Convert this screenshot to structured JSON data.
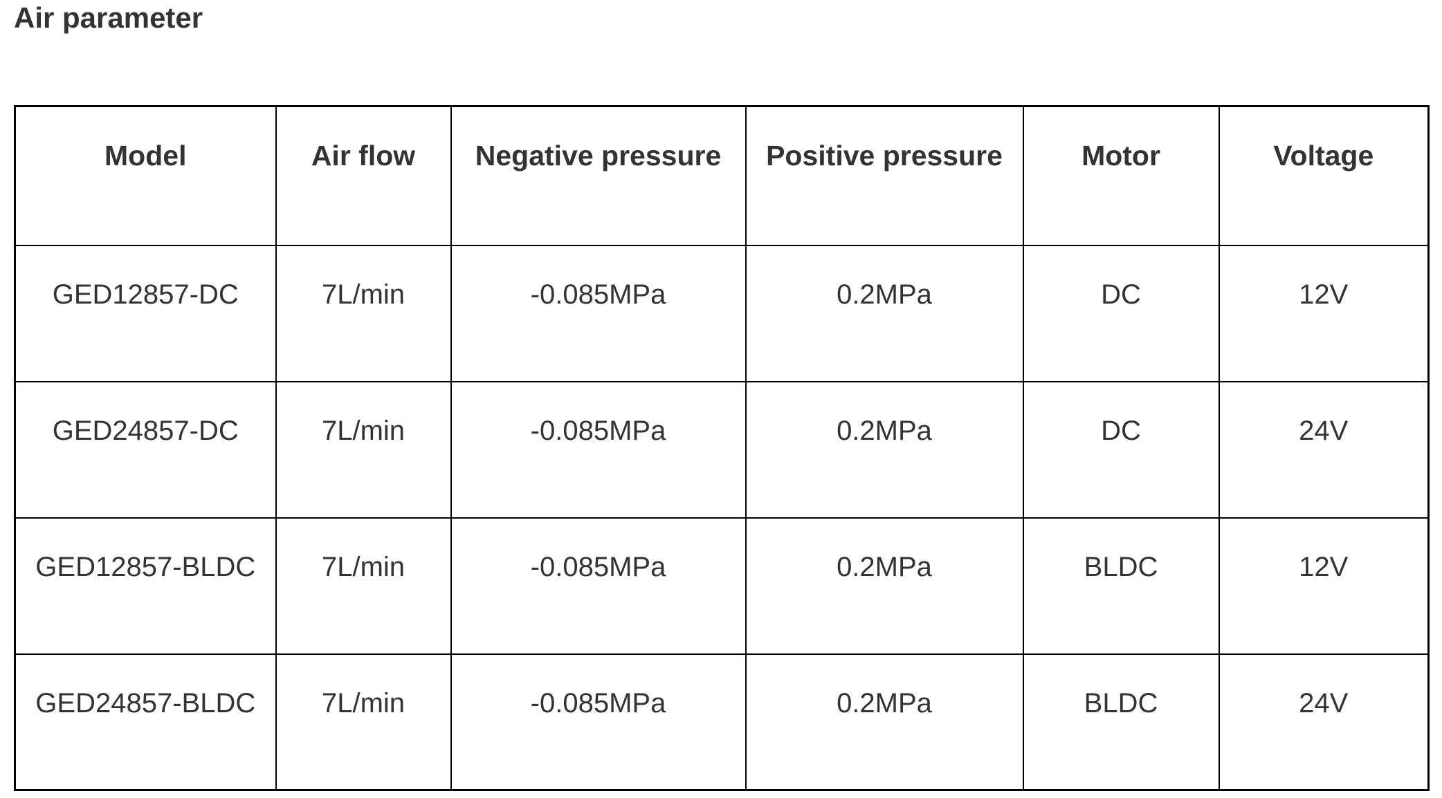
{
  "page": {
    "title": "Air parameter"
  },
  "colors": {
    "text": "#333333",
    "border": "#000000",
    "background": "#ffffff"
  },
  "table": {
    "columns": [
      "Model",
      "Air flow",
      "Negative pressure",
      "Positive pressure",
      "Motor",
      "Voltage"
    ],
    "rows": [
      [
        "GED12857-DC",
        "7L/min",
        "-0.085MPa",
        "0.2MPa",
        "DC",
        "12V"
      ],
      [
        "GED24857-DC",
        "7L/min",
        "-0.085MPa",
        "0.2MPa",
        "DC",
        "24V"
      ],
      [
        "GED12857-BLDC",
        "7L/min",
        "-0.085MPa",
        "0.2MPa",
        "BLDC",
        "12V"
      ],
      [
        "GED24857-BLDC",
        "7L/min",
        "-0.085MPa",
        "0.2MPa",
        "BLDC",
        "24V"
      ]
    ]
  }
}
